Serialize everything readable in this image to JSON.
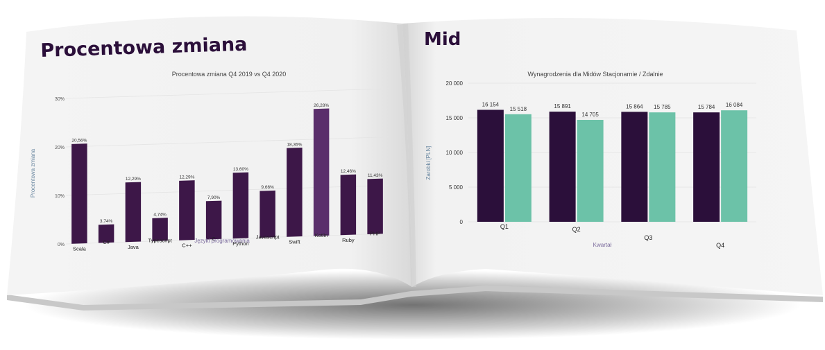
{
  "left_page": {
    "title": "Procentowa zmiana",
    "chart_data": {
      "type": "bar",
      "title": "Procentowa zmiana Q4 2019 vs Q4 2020",
      "xlabel": "Języki programowania",
      "ylabel": "Procentowa zmiana",
      "ylim": [
        0,
        30
      ],
      "yticks": [
        "0%",
        "10%",
        "20%",
        "30%"
      ],
      "categories": [
        "Scala",
        "C#",
        "Java",
        "Typescript",
        "C++",
        "C",
        "Python",
        "Javascript",
        "Swift",
        "Kotlin",
        "Ruby",
        "PHP"
      ],
      "values": [
        20.56,
        3.74,
        12.29,
        4.74,
        12.29,
        7.9,
        13.6,
        9.66,
        18.36,
        26.28,
        12.46,
        11.43
      ],
      "value_labels": [
        "20,56%",
        "3,74%",
        "12,29%",
        "4,74%",
        "12,29%",
        "7,90%",
        "13,60%",
        "9,66%",
        "18,36%",
        "26,28%",
        "12,46%",
        "11,43%"
      ],
      "colors": {
        "bar": "#3d1748",
        "highlight": "#5a2e6b"
      }
    }
  },
  "right_page": {
    "title": "Mid",
    "chart_data": {
      "type": "bar",
      "title": "Wynagrodzenia dla Midów Stacjonarnie / Zdalnie",
      "xlabel": "Kwartał",
      "ylabel": "Zarobki [PLN]",
      "ylim": [
        0,
        20000
      ],
      "yticks": [
        "0",
        "5 000",
        "10 000",
        "15 000",
        "20 000"
      ],
      "categories": [
        "Q1",
        "Q2",
        "Q3",
        "Q4"
      ],
      "series": [
        {
          "values": [
            16154,
            15891,
            15864,
            15784
          ],
          "labels": [
            "16 154",
            "15 891",
            "15 864",
            "15 784"
          ],
          "color": "#2b0f3a"
        },
        {
          "values": [
            15518,
            14705,
            15785,
            16084
          ],
          "labels": [
            "15 518",
            "14 705",
            "15 785",
            "16 084"
          ],
          "color": "#6cc2a8"
        }
      ]
    }
  }
}
